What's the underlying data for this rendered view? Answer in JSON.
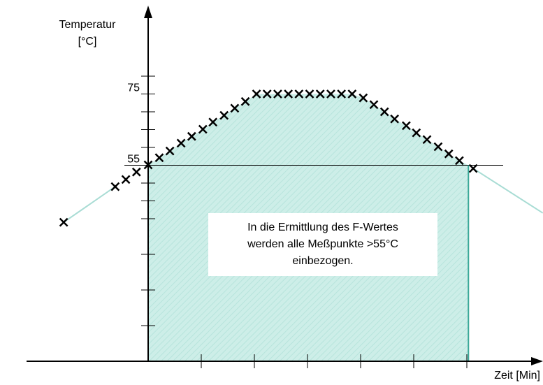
{
  "chart_data": {
    "type": "scatter",
    "y_label": [
      "Temperatur",
      "[°C]"
    ],
    "x_label": "Zeit [Min]",
    "annotation": [
      "In die Ermittlung des F-Wertes",
      "werden alle Meßpunkte >55°C",
      "einbezogen."
    ],
    "xlim": [
      -2.3,
      7.4
    ],
    "ylim": [
      0,
      99
    ],
    "xticks": [
      1,
      2,
      3,
      4,
      5,
      6
    ],
    "yticks": [
      55,
      75
    ],
    "yminorticks": [
      10,
      20,
      30,
      40,
      45,
      50,
      60,
      65,
      70,
      80
    ],
    "threshold_tick": 0,
    "cutoff_x": 6.03,
    "marker_color": "#000000",
    "line_color": "#a8dcd4",
    "area_color": "#cdeee8",
    "series": [
      {
        "x": [
          -1.59,
          -0.62,
          -0.42,
          -0.22,
          0,
          0.21,
          0.41,
          0.62,
          0.82,
          1.03,
          1.22,
          1.43,
          1.63,
          1.83,
          2.04,
          2.24,
          2.44,
          2.64,
          2.84,
          3.04,
          3.24,
          3.44,
          3.64,
          3.84,
          4.05,
          4.25,
          4.45,
          4.64,
          4.86,
          5.05,
          5.25,
          5.46,
          5.66,
          5.86,
          6.12
        ],
        "values": [
          39,
          49,
          51,
          53.1,
          55.1,
          57.1,
          59,
          61.2,
          63.1,
          65.1,
          67.1,
          69,
          71,
          72.9,
          75,
          75,
          75,
          75,
          75,
          75,
          75,
          75,
          75,
          75,
          73.9,
          72,
          70,
          68,
          66.1,
          64.1,
          62.2,
          60.2,
          58.2,
          56.3,
          54.1
        ]
      }
    ],
    "extrapolation": {
      "x": [
        6.12,
        7.43
      ],
      "values": [
        54.1,
        41.6
      ]
    }
  }
}
